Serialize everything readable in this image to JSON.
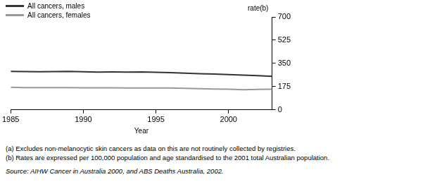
{
  "chart_data": {
    "type": "line",
    "x_label": "Year",
    "y_label": "rate(b)",
    "x": [
      1985,
      1986,
      1987,
      1988,
      1989,
      1990,
      1991,
      1992,
      1993,
      1994,
      1995,
      1996,
      1997,
      1998,
      1999,
      2000,
      2001,
      2002,
      2003
    ],
    "series": [
      {
        "name": "All cancers, males",
        "color": "#333333",
        "values": [
          290,
          288,
          287,
          289,
          290,
          287,
          285,
          286,
          285,
          286,
          283,
          281,
          277,
          273,
          270,
          266,
          262,
          258,
          252
        ]
      },
      {
        "name": "All cancers, females",
        "color": "#999999",
        "values": [
          170,
          168,
          167,
          168,
          167,
          166,
          166,
          166,
          165,
          165,
          165,
          165,
          162,
          160,
          157,
          155,
          152,
          154,
          155
        ]
      }
    ],
    "xlim": [
      1985,
      2003
    ],
    "xticks": [
      1985,
      1990,
      1995,
      2000
    ],
    "ylim": [
      0,
      700
    ],
    "yticks": [
      0,
      175,
      350,
      525,
      700
    ],
    "grid": false,
    "legend": "top-left",
    "notes": [
      "(a) Excludes non-melanocytic skin cancers as data on this are not routinely collected by registries.",
      "(b) Rates are expressed per 100,000 population and age standardised to the 2001 total Australian population."
    ],
    "source": "Source: AIHW Cancer in Australia 2000, and ABS Deaths Australia, 2002."
  }
}
